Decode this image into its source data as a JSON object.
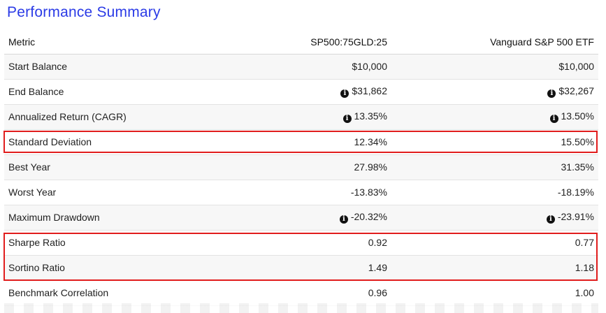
{
  "title": "Performance Summary",
  "table": {
    "headers": [
      "Metric",
      "SP500:75GLD:25",
      "Vanguard S&P 500 ETF"
    ],
    "rows": [
      {
        "metric": "Start Balance",
        "a": "$10,000",
        "b": "$10,000",
        "info": false
      },
      {
        "metric": "End Balance",
        "a": "$31,862",
        "b": "$32,267",
        "info": true
      },
      {
        "metric": "Annualized Return (CAGR)",
        "a": "13.35%",
        "b": "13.50%",
        "info": true
      },
      {
        "metric": "Standard Deviation",
        "a": "12.34%",
        "b": "15.50%",
        "info": false
      },
      {
        "metric": "Best Year",
        "a": "27.98%",
        "b": "31.35%",
        "info": false
      },
      {
        "metric": "Worst Year",
        "a": "-13.83%",
        "b": "-18.19%",
        "info": false
      },
      {
        "metric": "Maximum Drawdown",
        "a": "-20.32%",
        "b": "-23.91%",
        "info": true
      },
      {
        "metric": "Sharpe Ratio",
        "a": "0.92",
        "b": "0.77",
        "info": false
      },
      {
        "metric": "Sortino Ratio",
        "a": "1.49",
        "b": "1.18",
        "info": false
      },
      {
        "metric": "Benchmark Correlation",
        "a": "0.96",
        "b": "1.00",
        "info": false
      }
    ]
  },
  "icons": {
    "info": "info-circle-icon"
  },
  "colors": {
    "title": "#2b3be6",
    "highlight": "#e11d1d",
    "row_alt": "#f7f7f7"
  }
}
